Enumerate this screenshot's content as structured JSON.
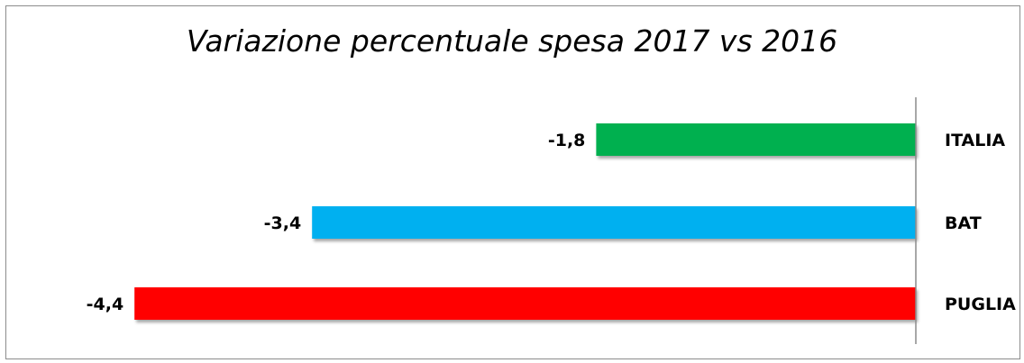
{
  "chart_data": {
    "type": "bar",
    "orientation": "horizontal",
    "title": "Variazione percentuale spesa 2017 vs 2016",
    "categories": [
      "ITALIA",
      "BAT",
      "PUGLIA"
    ],
    "values": [
      -1.8,
      -3.4,
      -4.4
    ],
    "value_labels": [
      "-1,8",
      "-3,4",
      "-4,4"
    ],
    "colors": [
      "#00b050",
      "#00b0f0",
      "#ff0000"
    ],
    "xlim": [
      -4.5,
      0
    ],
    "grid": false,
    "legend": "none"
  }
}
